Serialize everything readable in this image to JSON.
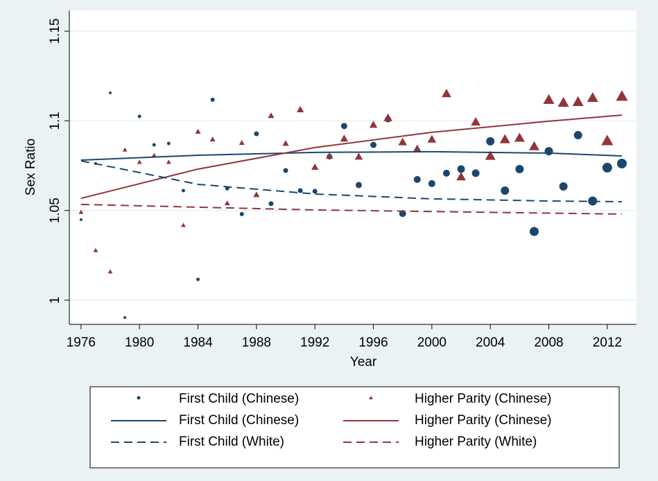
{
  "chart_data": {
    "type": "scatter",
    "x_label": "Year",
    "y_label": "Sex Ratio",
    "xlim": [
      1975.2,
      2014
    ],
    "ylim": [
      0.9865,
      1.1616
    ],
    "xticks": [
      1976,
      1980,
      1984,
      1988,
      1992,
      1996,
      2000,
      2004,
      2008,
      2012
    ],
    "yticks": [
      1,
      1.05,
      1.1,
      1.15
    ],
    "grid": true,
    "legend_columns": 2,
    "series": [
      {
        "name": "First Child (Chinese)",
        "type": "scatter",
        "marker": "circle",
        "color": "#1a476f",
        "x": [
          1976,
          1977,
          1978,
          1979,
          1980,
          1981,
          1982,
          1983,
          1984,
          1985,
          1986,
          1987,
          1988,
          1989,
          1990,
          1991,
          1992,
          1993,
          1994,
          1995,
          1996,
          1997,
          1998,
          1999,
          2000,
          2001,
          2002,
          2003,
          2004,
          2005,
          2006,
          2007,
          2008,
          2009,
          2010,
          2011,
          2012,
          2013
        ],
        "values": [
          1.0449,
          1.0762,
          1.1156,
          0.9903,
          1.1025,
          1.0866,
          1.0874,
          1.0611,
          1.0116,
          1.1118,
          1.0623,
          1.048,
          1.0928,
          1.0538,
          1.0723,
          1.0611,
          1.0607,
          1.08,
          1.0971,
          1.0642,
          1.0866,
          1.1009,
          1.0483,
          1.0673,
          1.065,
          1.0708,
          1.0731,
          1.0708,
          1.0886,
          1.0611,
          1.0731,
          1.0383,
          1.0831,
          1.0634,
          1.092,
          1.0553,
          1.0739,
          1.0762
        ],
        "sizes": [
          2,
          2,
          2,
          2,
          2.5,
          2.5,
          2.5,
          2.5,
          2.5,
          3,
          3,
          3,
          3.5,
          3.5,
          3.5,
          3.5,
          3.5,
          4,
          4.5,
          4.5,
          4.5,
          4.5,
          5,
          5,
          5,
          5,
          5.5,
          5.5,
          6,
          6,
          6,
          6.5,
          6,
          6,
          6,
          6.5,
          7,
          7
        ]
      },
      {
        "name": "Higher Parity (Chinese)",
        "type": "scatter",
        "marker": "triangle",
        "color": "#90353b",
        "x": [
          1976,
          1977,
          1978,
          1979,
          1980,
          1981,
          1982,
          1983,
          1984,
          1985,
          1986,
          1987,
          1988,
          1989,
          1990,
          1991,
          1992,
          1993,
          1994,
          1995,
          1996,
          1997,
          1998,
          1999,
          2000,
          2001,
          2002,
          2003,
          2004,
          2005,
          2006,
          2007,
          2008,
          2009,
          2010,
          2011,
          2012,
          2013
        ],
        "values": [
          1.0491,
          1.0278,
          1.0159,
          1.0839,
          1.077,
          1.0808,
          1.077,
          1.0418,
          1.094,
          1.0897,
          1.0541,
          1.0878,
          1.0588,
          1.1029,
          1.0874,
          1.1063,
          1.0742,
          1.0804,
          1.0901,
          1.08,
          1.0978,
          1.1017,
          1.0882,
          1.0843,
          1.0897,
          1.1152,
          1.0688,
          1.0994,
          1.0804,
          1.0897,
          1.0905,
          1.0858,
          1.1118,
          1.1102,
          1.1106,
          1.1129,
          1.0889,
          1.1137
        ],
        "sizes": [
          3,
          3,
          3,
          3,
          3,
          3,
          3,
          3,
          3.5,
          3.5,
          3.5,
          3.5,
          4,
          4,
          4,
          4.5,
          4.5,
          4.5,
          5,
          5,
          5,
          5.5,
          5.5,
          5.5,
          5.5,
          6,
          6,
          6,
          6.5,
          6.5,
          6.5,
          6.5,
          7,
          7,
          7,
          7,
          7.5,
          7.5
        ]
      },
      {
        "name": "First Child (Chinese)",
        "type": "line",
        "dashed": false,
        "color": "#1a476f",
        "x": [
          1976,
          1984,
          1992,
          2000,
          2008,
          2013
        ],
        "values": [
          1.0781,
          1.0808,
          1.0824,
          1.0828,
          1.082,
          1.0804
        ]
      },
      {
        "name": "Higher Parity (Chinese)",
        "type": "line",
        "dashed": false,
        "color": "#90353b",
        "x": [
          1976,
          1984,
          1992,
          2000,
          2008,
          2013
        ],
        "values": [
          1.0568,
          1.0731,
          1.0851,
          1.0936,
          1.0998,
          1.1032
        ]
      },
      {
        "name": "First Child (White)",
        "type": "line",
        "dashed": true,
        "color": "#1a476f",
        "x": [
          1976,
          1984,
          1992,
          2000,
          2008,
          2013
        ],
        "values": [
          1.0777,
          1.0646,
          1.0592,
          1.0565,
          1.0553,
          1.0549
        ]
      },
      {
        "name": "Higher Parity (White)",
        "type": "line",
        "dashed": true,
        "color": "#90353b",
        "x": [
          1976,
          1992,
          2013
        ],
        "values": [
          1.0534,
          1.0503,
          1.048
        ]
      }
    ]
  }
}
